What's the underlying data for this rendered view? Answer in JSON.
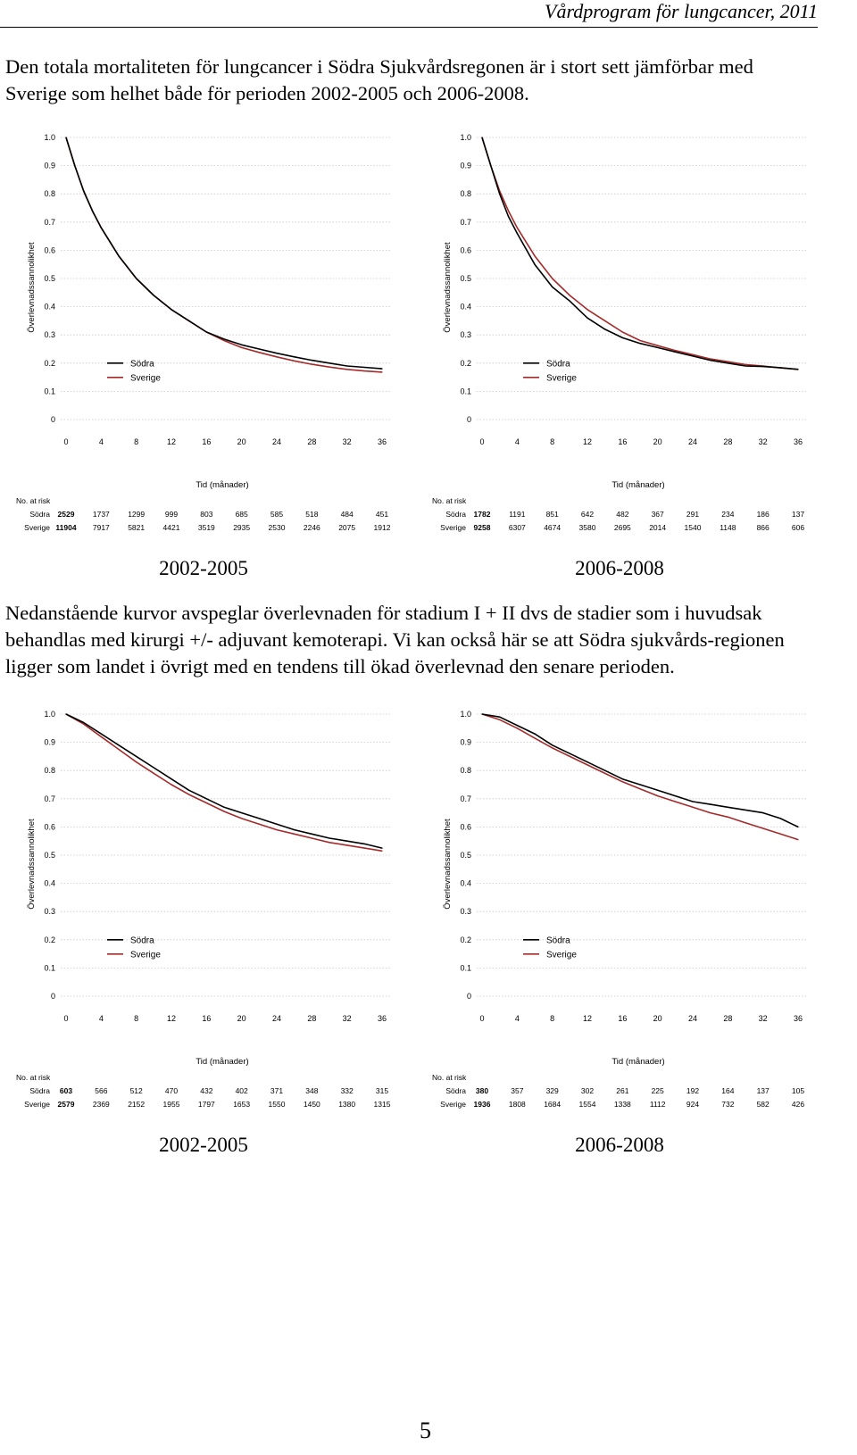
{
  "header": {
    "title": "Vårdprogram för lungcancer, 2011"
  },
  "paragraphs": {
    "p1": "Den totala mortaliteten för lungcancer i Södra Sjukvårdsregonen är i stort sett jämförbar med Sverige som helhet både för perioden 2002-2005 och 2006-2008.",
    "p2": "Nedanstående kurvor avspeglar överlevnaden för stadium I + II dvs de stadier som i huvudsak behandlas med kirurgi +/- adjuvant kemoterapi. Vi kan också här se att Södra sjukvårds-regionen ligger som landet i övrigt med en tendens till ökad överlevnad den senare perioden."
  },
  "page_number": "5",
  "colors": {
    "sodra": "#000000",
    "sverige": "#a52a2a",
    "grid": "#c8c8c8"
  },
  "chart_data": [
    {
      "type": "line",
      "period": "2002-2005",
      "xlabel": "Tid (månader)",
      "ylabel": "Överlevnadssannolikhet",
      "xlim": [
        0,
        36
      ],
      "ylim": [
        0,
        1
      ],
      "xticks": [
        "0",
        "4",
        "8",
        "12",
        "16",
        "20",
        "24",
        "28",
        "32",
        "36"
      ],
      "yticks": [
        "0",
        "0.1",
        "0.2",
        "0.3",
        "0.4",
        "0.5",
        "0.6",
        "0.7",
        "0.8",
        "0.9",
        "1.0"
      ],
      "grid": "horizontal dotted",
      "legend_position": "bottom-left",
      "x": [
        0,
        1,
        2,
        3,
        4,
        6,
        8,
        10,
        12,
        14,
        16,
        18,
        20,
        22,
        24,
        26,
        28,
        30,
        32,
        34,
        36
      ],
      "series": [
        {
          "name": "Södra",
          "values": [
            1.0,
            0.9,
            0.81,
            0.74,
            0.68,
            0.58,
            0.5,
            0.44,
            0.39,
            0.35,
            0.31,
            0.285,
            0.265,
            0.25,
            0.235,
            0.222,
            0.21,
            0.2,
            0.19,
            0.185,
            0.18
          ]
        },
        {
          "name": "Sverige",
          "values": [
            1.0,
            0.9,
            0.81,
            0.74,
            0.68,
            0.58,
            0.5,
            0.44,
            0.39,
            0.35,
            0.31,
            0.28,
            0.255,
            0.238,
            0.222,
            0.208,
            0.196,
            0.186,
            0.178,
            0.172,
            0.168
          ]
        }
      ],
      "risk_table": {
        "title": "No. at risk",
        "rows": [
          {
            "name": "Södra",
            "first": "2529",
            "values": [
              "1737",
              "1299",
              "999",
              "803",
              "685",
              "585",
              "518",
              "484",
              "451"
            ]
          },
          {
            "name": "Sverige",
            "first": "11904",
            "values": [
              "7917",
              "5821",
              "4421",
              "3519",
              "2935",
              "2530",
              "2246",
              "2075",
              "1912"
            ]
          }
        ]
      }
    },
    {
      "type": "line",
      "period": "2006-2008",
      "xlabel": "Tid (månader)",
      "ylabel": "Överlevnadssannolikhet",
      "xlim": [
        0,
        36
      ],
      "ylim": [
        0,
        1
      ],
      "xticks": [
        "0",
        "4",
        "8",
        "12",
        "16",
        "20",
        "24",
        "28",
        "32",
        "36"
      ],
      "yticks": [
        "0",
        "0.1",
        "0.2",
        "0.3",
        "0.4",
        "0.5",
        "0.6",
        "0.7",
        "0.8",
        "0.9",
        "1.0"
      ],
      "grid": "horizontal dotted",
      "legend_position": "bottom-left",
      "x": [
        0,
        1,
        2,
        3,
        4,
        6,
        8,
        10,
        12,
        14,
        16,
        18,
        20,
        22,
        24,
        26,
        28,
        30,
        32,
        34,
        36
      ],
      "series": [
        {
          "name": "Södra",
          "values": [
            1.0,
            0.9,
            0.8,
            0.72,
            0.66,
            0.55,
            0.47,
            0.42,
            0.36,
            0.32,
            0.29,
            0.27,
            0.255,
            0.24,
            0.225,
            0.21,
            0.2,
            0.19,
            0.188,
            0.184,
            0.178
          ]
        },
        {
          "name": "Sverige",
          "values": [
            1.0,
            0.9,
            0.81,
            0.74,
            0.68,
            0.58,
            0.5,
            0.44,
            0.39,
            0.35,
            0.31,
            0.28,
            0.262,
            0.245,
            0.23,
            0.215,
            0.205,
            0.195,
            0.19,
            0.183,
            0.178
          ]
        }
      ],
      "risk_table": {
        "title": "No. at risk",
        "rows": [
          {
            "name": "Södra",
            "first": "1782",
            "values": [
              "1191",
              "851",
              "642",
              "482",
              "367",
              "291",
              "234",
              "186",
              "137"
            ]
          },
          {
            "name": "Sverige",
            "first": "9258",
            "values": [
              "6307",
              "4674",
              "3580",
              "2695",
              "2014",
              "1540",
              "1148",
              "866",
              "606"
            ]
          }
        ]
      }
    },
    {
      "type": "line",
      "period": "2002-2005",
      "xlabel": "Tid (månader)",
      "ylabel": "Överlevnadssannolikhet",
      "xlim": [
        0,
        36
      ],
      "ylim": [
        0,
        1
      ],
      "xticks": [
        "0",
        "4",
        "8",
        "12",
        "16",
        "20",
        "24",
        "28",
        "32",
        "36"
      ],
      "yticks": [
        "0",
        "0.1",
        "0.2",
        "0.3",
        "0.4",
        "0.5",
        "0.6",
        "0.7",
        "0.8",
        "0.9",
        "1.0"
      ],
      "grid": "horizontal dotted",
      "legend_position": "bottom-left",
      "x": [
        0,
        2,
        4,
        6,
        8,
        10,
        12,
        14,
        16,
        18,
        20,
        22,
        24,
        26,
        28,
        30,
        32,
        34,
        36
      ],
      "series": [
        {
          "name": "Södra",
          "values": [
            1.0,
            0.97,
            0.93,
            0.89,
            0.85,
            0.81,
            0.77,
            0.73,
            0.7,
            0.67,
            0.65,
            0.63,
            0.61,
            0.59,
            0.575,
            0.56,
            0.55,
            0.54,
            0.525
          ]
        },
        {
          "name": "Sverige",
          "values": [
            1.0,
            0.965,
            0.92,
            0.875,
            0.83,
            0.79,
            0.75,
            0.715,
            0.685,
            0.655,
            0.63,
            0.61,
            0.59,
            0.575,
            0.56,
            0.545,
            0.535,
            0.525,
            0.515
          ]
        }
      ],
      "risk_table": {
        "title": "No. at risk",
        "rows": [
          {
            "name": "Södra",
            "first": "603",
            "values": [
              "566",
              "512",
              "470",
              "432",
              "402",
              "371",
              "348",
              "332",
              "315"
            ]
          },
          {
            "name": "Sverige",
            "first": "2579",
            "values": [
              "2369",
              "2152",
              "1955",
              "1797",
              "1653",
              "1550",
              "1450",
              "1380",
              "1315"
            ]
          }
        ]
      }
    },
    {
      "type": "line",
      "period": "2006-2008",
      "xlabel": "Tid (månader)",
      "ylabel": "Överlevnadssannolikhet",
      "xlim": [
        0,
        36
      ],
      "ylim": [
        0,
        1
      ],
      "xticks": [
        "0",
        "4",
        "8",
        "12",
        "16",
        "20",
        "24",
        "28",
        "32",
        "36"
      ],
      "yticks": [
        "0",
        "0.1",
        "0.2",
        "0.3",
        "0.4",
        "0.5",
        "0.6",
        "0.7",
        "0.8",
        "0.9",
        "1.0"
      ],
      "grid": "horizontal dotted",
      "legend_position": "bottom-left",
      "x": [
        0,
        2,
        4,
        6,
        8,
        10,
        12,
        14,
        16,
        18,
        20,
        22,
        24,
        26,
        28,
        30,
        32,
        34,
        36
      ],
      "series": [
        {
          "name": "Södra",
          "values": [
            1.0,
            0.99,
            0.96,
            0.93,
            0.89,
            0.86,
            0.83,
            0.8,
            0.77,
            0.75,
            0.73,
            0.71,
            0.69,
            0.68,
            0.67,
            0.66,
            0.65,
            0.63,
            0.6
          ]
        },
        {
          "name": "Sverige",
          "values": [
            1.0,
            0.98,
            0.95,
            0.915,
            0.88,
            0.85,
            0.82,
            0.79,
            0.76,
            0.735,
            0.71,
            0.69,
            0.67,
            0.65,
            0.635,
            0.615,
            0.595,
            0.575,
            0.555
          ]
        }
      ],
      "risk_table": {
        "title": "No. at risk",
        "rows": [
          {
            "name": "Södra",
            "first": "380",
            "values": [
              "357",
              "329",
              "302",
              "261",
              "225",
              "192",
              "164",
              "137",
              "105"
            ]
          },
          {
            "name": "Sverige",
            "first": "1936",
            "values": [
              "1808",
              "1684",
              "1554",
              "1338",
              "1112",
              "924",
              "732",
              "582",
              "426"
            ]
          }
        ]
      }
    }
  ]
}
